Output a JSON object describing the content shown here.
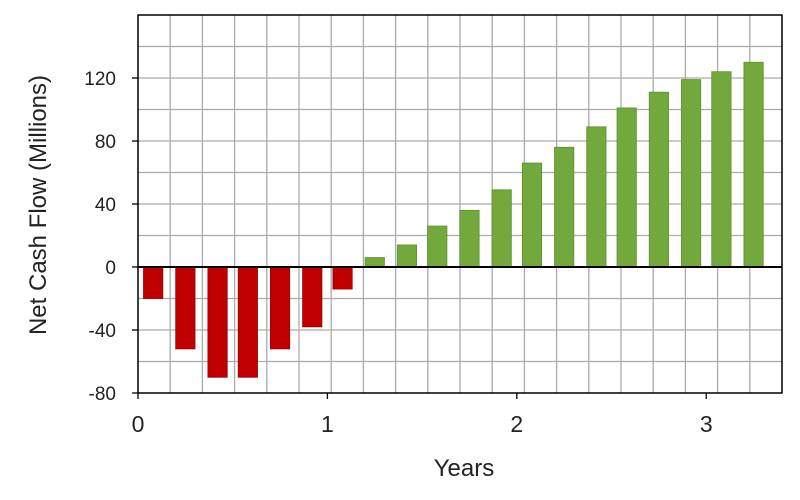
{
  "chart_data": {
    "type": "bar",
    "xlabel": "Years",
    "ylabel": "Net Cash Flow (Millions)",
    "xlim": [
      0,
      3.4
    ],
    "ylim": [
      -80,
      160
    ],
    "x_ticks": [
      "0",
      "1",
      "2",
      "3"
    ],
    "y_ticks": [
      "120",
      "80",
      "40",
      "0",
      "-40",
      "-80"
    ],
    "grid": true,
    "colors": {
      "negative": "#c00000",
      "positive": "#72a83c",
      "grid": "#aaaaaa",
      "axis": "#000000"
    },
    "x": [
      0.08,
      0.25,
      0.42,
      0.58,
      0.75,
      0.92,
      1.08,
      1.25,
      1.42,
      1.58,
      1.75,
      1.92,
      2.08,
      2.25,
      2.42,
      2.58,
      2.75,
      2.92,
      3.08,
      3.25
    ],
    "values": [
      -20,
      -52,
      -70,
      -70,
      -52,
      -38,
      -14,
      6,
      14,
      26,
      36,
      49,
      66,
      76,
      89,
      101,
      111,
      119,
      124,
      130
    ]
  }
}
